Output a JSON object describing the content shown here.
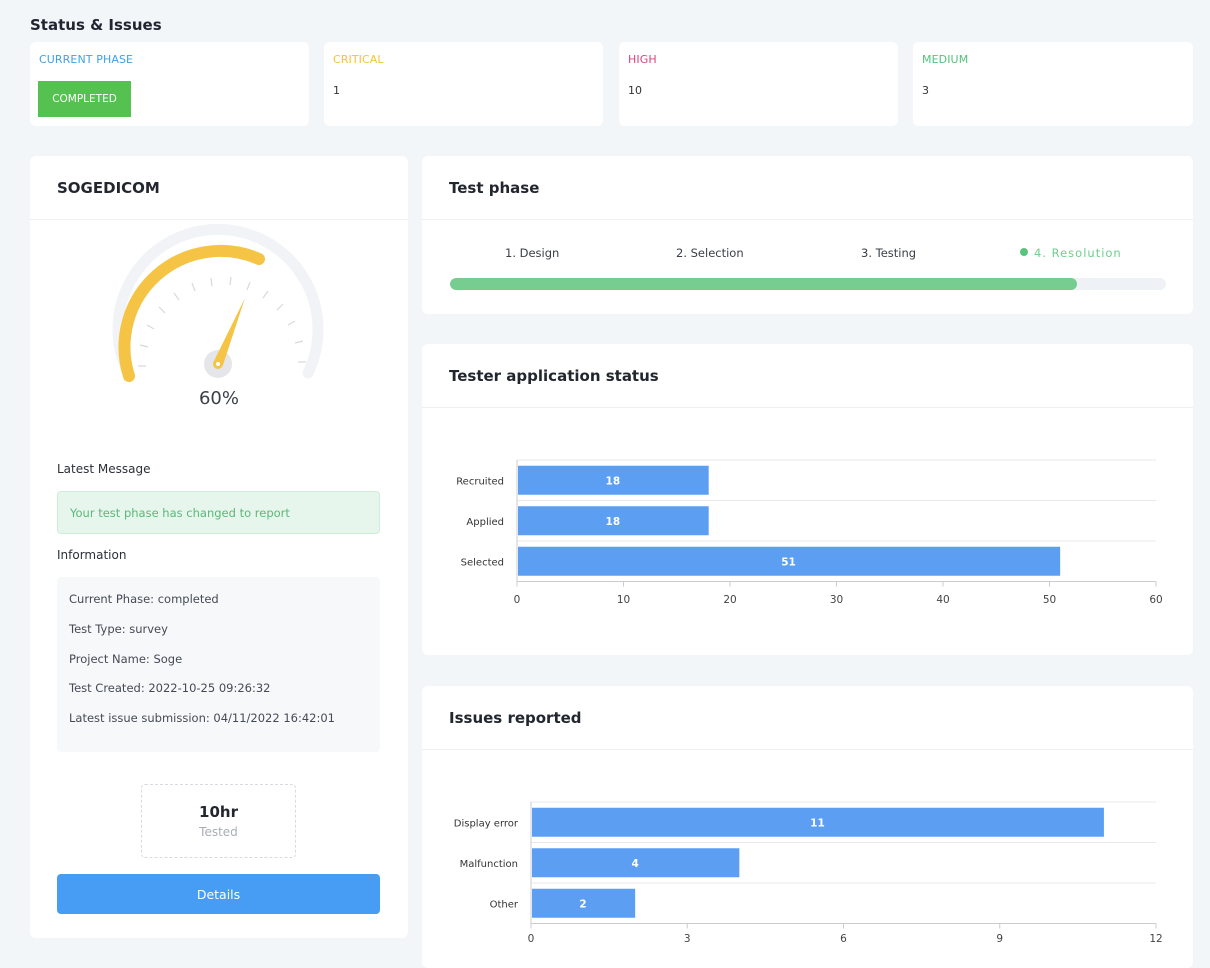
{
  "page_title": "Status & Issues",
  "stats": [
    {
      "label": "CURRENT PHASE",
      "value": "COMPLETED",
      "color": "#3ea1e6"
    },
    {
      "label": "CRITICAL",
      "value": "1",
      "color": "#f1c532"
    },
    {
      "label": "HIGH",
      "value": "10",
      "color": "#d9457c"
    },
    {
      "label": "MEDIUM",
      "value": "3",
      "color": "#55c17a"
    }
  ],
  "project": {
    "name": "SOGEDICOM",
    "gauge_percent": 60,
    "gauge_label": "60%",
    "latest_message_title": "Latest Message",
    "latest_message": "Your test phase has changed to report",
    "information_title": "Information",
    "info": [
      "Current Phase: completed",
      "Test Type: survey",
      "Project Name: Soge",
      "Test Created: 2022-10-25 09:26:32",
      "Latest issue submission: 04/11/2022 16:42:01"
    ],
    "tested_value": "10hr",
    "tested_label": "Tested",
    "details_label": "Details"
  },
  "test_phase": {
    "title": "Test phase",
    "steps": [
      "1. Design",
      "2. Selection",
      "3. Testing",
      "4. Resolution"
    ],
    "active_step_index": 3,
    "progress_fraction": 0.875
  },
  "tester_status": {
    "title": "Tester application status"
  },
  "issues_reported": {
    "title": "Issues reported"
  },
  "chart_data": [
    {
      "type": "bar",
      "orientation": "horizontal",
      "title": "Tester application status",
      "categories": [
        "Recruited",
        "Applied",
        "Selected"
      ],
      "values": [
        18,
        18,
        51
      ],
      "value_labels": [
        "18",
        "18",
        "51"
      ],
      "xlim": [
        0,
        60
      ],
      "ticks": [
        "0",
        "10",
        "20",
        "30",
        "40",
        "50",
        "60"
      ],
      "tick_values": [
        0,
        10,
        20,
        30,
        40,
        50,
        60
      ],
      "bar_color": "#5c9ff2"
    },
    {
      "type": "bar",
      "orientation": "horizontal",
      "title": "Issues reported",
      "categories": [
        "Display error",
        "Malfunction",
        "Other"
      ],
      "values": [
        11,
        4,
        2
      ],
      "value_labels": [
        "11",
        "4",
        "2"
      ],
      "xlim": [
        0,
        12
      ],
      "ticks": [
        "0",
        "3",
        "6",
        "9",
        "12"
      ],
      "tick_values": [
        0,
        3,
        6,
        9,
        12
      ],
      "bar_color": "#5c9ff2"
    }
  ]
}
